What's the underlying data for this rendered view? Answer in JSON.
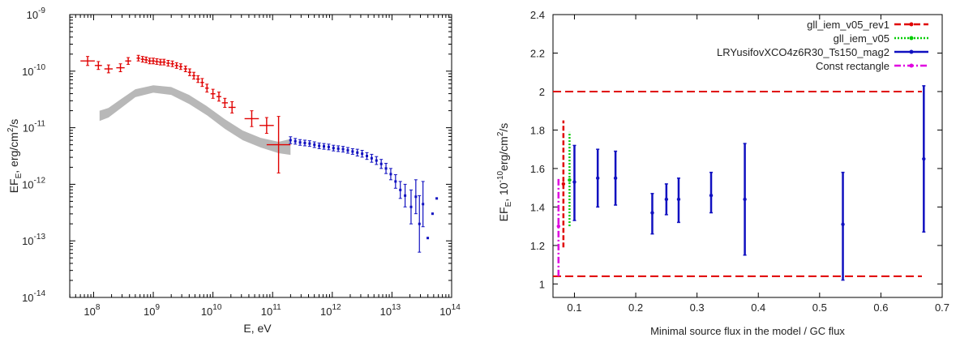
{
  "colors": {
    "red": "#e00000",
    "blue": "#1010c0",
    "gray": "#b8b8b8",
    "green": "#00cc00",
    "magenta": "#e000e0",
    "dashed_red": "#e00000"
  },
  "chart_data": [
    {
      "type": "scatter",
      "title": "",
      "xlabel": "E, eV",
      "ylabel": "EF_E, erg/cm²/s",
      "ylabel_base": "EF",
      "ylabel_sub": "E",
      "ylabel_rest": ", erg/cm",
      "ylabel_sup": "2",
      "ylabel_end": "/s",
      "xscale": "log",
      "yscale": "log",
      "xlim_exp": [
        7.6,
        14
      ],
      "ylim_exp": [
        -14,
        -9
      ],
      "xticks": [
        {
          "base": "10",
          "exp": "8",
          "v": 8
        },
        {
          "base": "10",
          "exp": "9",
          "v": 9
        },
        {
          "base": "10",
          "exp": "10",
          "v": 10
        },
        {
          "base": "10",
          "exp": "11",
          "v": 11
        },
        {
          "base": "10",
          "exp": "12",
          "v": 12
        },
        {
          "base": "10",
          "exp": "13",
          "v": 13
        },
        {
          "base": "10",
          "exp": "14",
          "v": 14
        }
      ],
      "yticks": [
        {
          "base": "10",
          "exp": "-14",
          "v": -14
        },
        {
          "base": "10",
          "exp": "-13",
          "v": -13
        },
        {
          "base": "10",
          "exp": "-12",
          "v": -12
        },
        {
          "base": "10",
          "exp": "-11",
          "v": -11
        },
        {
          "base": "10",
          "exp": "-10",
          "v": -10
        },
        {
          "base": "10",
          "exp": "-9",
          "v": -9
        }
      ],
      "series": [
        {
          "color": "#e00000",
          "kind": "errorbar-cross",
          "points_log": [
            [
              7.9,
              -9.82,
              0.12,
              0.08
            ],
            [
              8.08,
              -9.9,
              0.06,
              0.07
            ],
            [
              8.25,
              -9.96,
              0.07,
              0.07
            ],
            [
              8.45,
              -9.94,
              0.07,
              0.07
            ],
            [
              8.58,
              -9.82,
              0.05,
              0.06
            ],
            [
              8.75,
              -9.77,
              0.03,
              0.05
            ],
            [
              8.82,
              -9.79,
              0.03,
              0.05
            ],
            [
              8.88,
              -9.8,
              0.03,
              0.05
            ],
            [
              8.94,
              -9.82,
              0.03,
              0.05
            ],
            [
              9.0,
              -9.82,
              0.03,
              0.05
            ],
            [
              9.06,
              -9.83,
              0.03,
              0.05
            ],
            [
              9.12,
              -9.84,
              0.03,
              0.05
            ],
            [
              9.18,
              -9.84,
              0.03,
              0.05
            ],
            [
              9.25,
              -9.86,
              0.03,
              0.05
            ],
            [
              9.32,
              -9.87,
              0.03,
              0.05
            ],
            [
              9.39,
              -9.9,
              0.03,
              0.05
            ],
            [
              9.46,
              -9.92,
              0.03,
              0.05
            ],
            [
              9.54,
              -9.96,
              0.03,
              0.05
            ],
            [
              9.61,
              -10.02,
              0.03,
              0.06
            ],
            [
              9.68,
              -10.08,
              0.03,
              0.06
            ],
            [
              9.75,
              -10.14,
              0.03,
              0.06
            ],
            [
              9.82,
              -10.2,
              0.03,
              0.07
            ],
            [
              9.9,
              -10.3,
              0.03,
              0.07
            ],
            [
              10.0,
              -10.4,
              0.04,
              0.08
            ],
            [
              10.1,
              -10.45,
              0.04,
              0.08
            ],
            [
              10.2,
              -10.56,
              0.05,
              0.08
            ],
            [
              10.32,
              -10.64,
              0.06,
              0.1
            ],
            [
              10.65,
              -10.84,
              0.12,
              0.14
            ],
            [
              10.9,
              -10.96,
              0.12,
              0.14
            ],
            [
              11.1,
              -11.3,
              0.2,
              0.5
            ]
          ]
        },
        {
          "color": "#1010c0",
          "kind": "errorbar",
          "points_log": [
            [
              11.3,
              -11.22,
              0.06
            ],
            [
              11.38,
              -11.24,
              0.05
            ],
            [
              11.46,
              -11.26,
              0.05
            ],
            [
              11.54,
              -11.27,
              0.05
            ],
            [
              11.62,
              -11.28,
              0.05
            ],
            [
              11.7,
              -11.3,
              0.05
            ],
            [
              11.78,
              -11.32,
              0.05
            ],
            [
              11.86,
              -11.33,
              0.05
            ],
            [
              11.94,
              -11.34,
              0.05
            ],
            [
              12.02,
              -11.36,
              0.05
            ],
            [
              12.1,
              -11.37,
              0.05
            ],
            [
              12.18,
              -11.38,
              0.05
            ],
            [
              12.26,
              -11.4,
              0.05
            ],
            [
              12.34,
              -11.42,
              0.05
            ],
            [
              12.42,
              -11.44,
              0.06
            ],
            [
              12.5,
              -11.46,
              0.06
            ],
            [
              12.58,
              -11.5,
              0.06
            ],
            [
              12.66,
              -11.54,
              0.07
            ],
            [
              12.74,
              -11.58,
              0.07
            ],
            [
              12.82,
              -11.64,
              0.08
            ],
            [
              12.9,
              -11.72,
              0.09
            ],
            [
              12.98,
              -11.82,
              0.1
            ],
            [
              13.06,
              -11.95,
              0.12
            ],
            [
              13.14,
              -12.1,
              0.15
            ],
            [
              13.22,
              -12.2,
              0.2
            ],
            [
              13.32,
              -12.4,
              0.3
            ],
            [
              13.4,
              -12.22,
              0.3
            ],
            [
              13.46,
              -12.7,
              0.5
            ],
            [
              13.52,
              -12.35,
              0.4
            ],
            [
              13.6,
              -12.95,
              0
            ],
            [
              13.68,
              -12.52,
              0
            ],
            [
              13.75,
              -12.25,
              0
            ]
          ]
        },
        {
          "color": "#b8b8b8",
          "kind": "band",
          "upper_log": [
            [
              8.1,
              -10.7
            ],
            [
              8.25,
              -10.65
            ],
            [
              8.45,
              -10.5
            ],
            [
              8.7,
              -10.32
            ],
            [
              9.0,
              -10.25
            ],
            [
              9.3,
              -10.28
            ],
            [
              9.6,
              -10.42
            ],
            [
              9.9,
              -10.62
            ],
            [
              10.2,
              -10.85
            ],
            [
              10.5,
              -11.05
            ],
            [
              10.8,
              -11.18
            ],
            [
              11.1,
              -11.25
            ],
            [
              11.3,
              -11.2
            ]
          ],
          "lower_log": [
            [
              8.1,
              -10.88
            ],
            [
              8.25,
              -10.82
            ],
            [
              8.45,
              -10.66
            ],
            [
              8.7,
              -10.46
            ],
            [
              9.0,
              -10.38
            ],
            [
              9.3,
              -10.42
            ],
            [
              9.6,
              -10.58
            ],
            [
              9.9,
              -10.78
            ],
            [
              10.2,
              -11.02
            ],
            [
              10.5,
              -11.22
            ],
            [
              10.8,
              -11.35
            ],
            [
              11.1,
              -11.45
            ],
            [
              11.3,
              -11.48
            ]
          ]
        }
      ]
    },
    {
      "type": "scatter",
      "title": "",
      "xlabel": "Minimal source flux in the model / GC flux",
      "ylabel_base": "EF",
      "ylabel_sub": "E",
      "ylabel_mid": ", 10",
      "ylabel_sup1": "-10",
      "ylabel_mid2": "erg/cm",
      "ylabel_sup2": "2",
      "ylabel_end": "/s",
      "xlim": [
        0.065,
        0.7
      ],
      "ylim": [
        0.93,
        2.4
      ],
      "xticks": [
        "0.1",
        "0.2",
        "0.3",
        "0.4",
        "0.5",
        "0.6",
        "0.7"
      ],
      "yticks": [
        "1",
        "1.2",
        "1.4",
        "1.6",
        "1.8",
        "2",
        "2.2",
        "2.4"
      ],
      "legend_position": "top-right",
      "legend": [
        {
          "label": "gll_iem_v05_rev1",
          "color": "#e00000",
          "dash": "8,4"
        },
        {
          "label": "gll_iem_v05",
          "color": "#00cc00",
          "dash": "2,2"
        },
        {
          "label": "LRYusifovXCO4z6R30_Ts150_mag2",
          "color": "#1010c0",
          "dash": ""
        },
        {
          "label": "Const rectangle",
          "color": "#e000e0",
          "dash": "8,3,2,3"
        }
      ],
      "hlines": [
        2.0,
        1.04
      ],
      "series": [
        {
          "name": "gll_iem_v05_rev1",
          "color": "#e00000",
          "dash": "6,3",
          "points": [
            [
              0.082,
              1.52,
              1.19,
              1.85
            ]
          ]
        },
        {
          "name": "gll_iem_v05",
          "color": "#00cc00",
          "dash": "2,2",
          "points": [
            [
              0.092,
              1.54,
              1.3,
              1.79
            ]
          ]
        },
        {
          "name": "LRYusifovXCO4z6R30_Ts150_mag2",
          "color": "#1010c0",
          "dash": "",
          "points": [
            [
              0.1,
              1.53,
              1.33,
              1.72
            ],
            [
              0.138,
              1.55,
              1.4,
              1.7
            ],
            [
              0.167,
              1.55,
              1.41,
              1.69
            ],
            [
              0.227,
              1.37,
              1.26,
              1.47
            ],
            [
              0.25,
              1.44,
              1.36,
              1.52
            ],
            [
              0.27,
              1.44,
              1.32,
              1.55
            ],
            [
              0.323,
              1.46,
              1.37,
              1.58
            ],
            [
              0.378,
              1.44,
              1.15,
              1.73
            ],
            [
              0.538,
              1.31,
              1.02,
              1.58
            ],
            [
              0.67,
              1.65,
              1.27,
              2.03
            ]
          ]
        },
        {
          "name": "Const rectangle",
          "color": "#e000e0",
          "dash": "8,3,2,3",
          "points": [
            [
              0.074,
              1.3,
              1.04,
              1.55
            ]
          ]
        }
      ]
    }
  ]
}
